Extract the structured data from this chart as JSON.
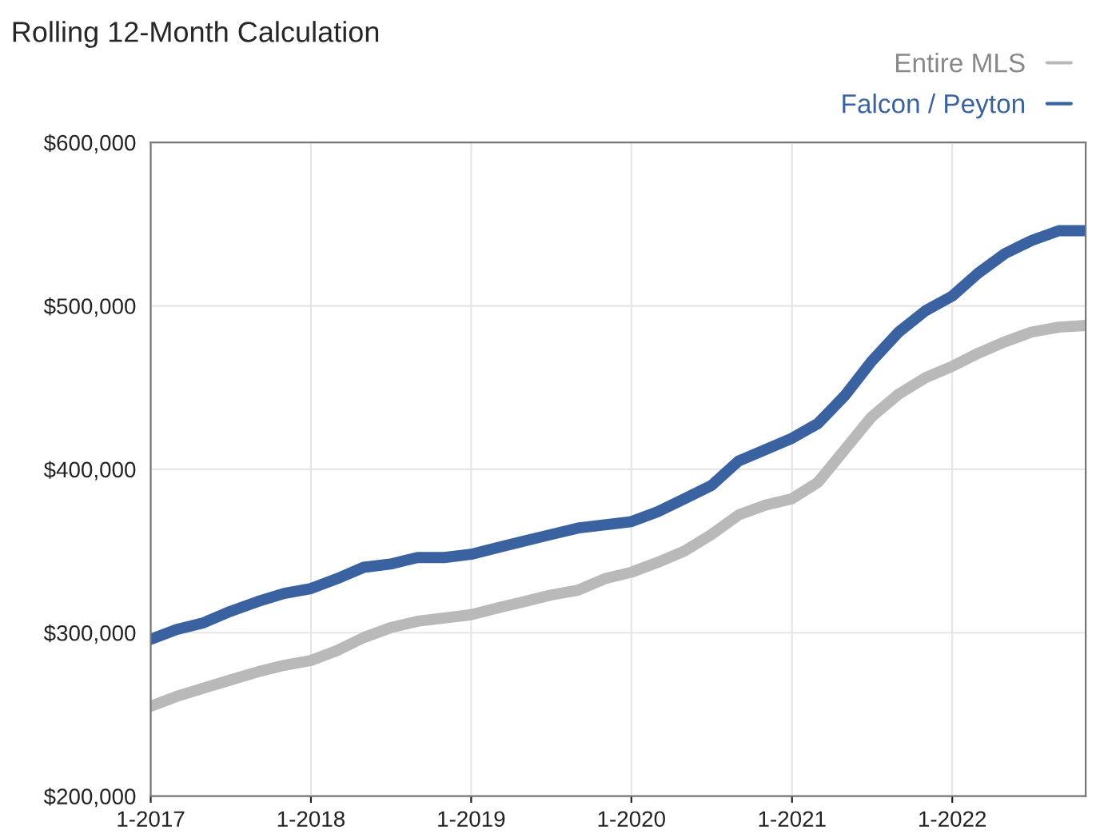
{
  "chart_data": {
    "type": "line",
    "title": "Rolling 12-Month Calculation",
    "x": [
      "2017-01",
      "2017-03",
      "2017-05",
      "2017-07",
      "2017-09",
      "2017-11",
      "2018-01",
      "2018-03",
      "2018-05",
      "2018-07",
      "2018-09",
      "2018-11",
      "2019-01",
      "2019-03",
      "2019-05",
      "2019-07",
      "2019-09",
      "2019-11",
      "2020-01",
      "2020-03",
      "2020-05",
      "2020-07",
      "2020-09",
      "2020-11",
      "2021-01",
      "2021-03",
      "2021-05",
      "2021-07",
      "2021-09",
      "2021-11",
      "2022-01",
      "2022-03",
      "2022-05",
      "2022-07",
      "2022-09",
      "2022-11"
    ],
    "series": [
      {
        "name": "Entire MLS",
        "color": "#b9b9b9",
        "values": [
          255000,
          261000,
          266000,
          271000,
          276000,
          280000,
          283000,
          289000,
          297000,
          303000,
          307000,
          309000,
          311000,
          315000,
          319000,
          323000,
          326000,
          333000,
          337000,
          343000,
          350000,
          360000,
          372000,
          378000,
          382000,
          392000,
          412000,
          432000,
          446000,
          456000,
          463000,
          471000,
          478000,
          484000,
          487000,
          488000
        ]
      },
      {
        "name": "Falcon / Peyton",
        "color": "#3a62a0",
        "values": [
          296000,
          302000,
          306000,
          313000,
          319000,
          324000,
          327000,
          333000,
          340000,
          342000,
          346000,
          346000,
          348000,
          352000,
          356000,
          360000,
          364000,
          366000,
          368000,
          374000,
          382000,
          390000,
          405000,
          412000,
          419000,
          428000,
          445000,
          466000,
          484000,
          497000,
          506000,
          520000,
          532000,
          540000,
          546000,
          546000
        ]
      }
    ],
    "xlim": [
      "2017-01",
      "2022-11"
    ],
    "xticks": [
      {
        "value": "2017-01",
        "label": "1-2017"
      },
      {
        "value": "2018-01",
        "label": "1-2018"
      },
      {
        "value": "2019-01",
        "label": "1-2019"
      },
      {
        "value": "2020-01",
        "label": "1-2020"
      },
      {
        "value": "2021-01",
        "label": "1-2021"
      },
      {
        "value": "2022-01",
        "label": "1-2022"
      }
    ],
    "ylim": [
      200000,
      600000
    ],
    "yticks": [
      {
        "value": 200000,
        "label": "$200,000"
      },
      {
        "value": 300000,
        "label": "$300,000"
      },
      {
        "value": 400000,
        "label": "$400,000"
      },
      {
        "value": 500000,
        "label": "$500,000"
      },
      {
        "value": 600000,
        "label": "$600,000"
      }
    ],
    "grid": true,
    "legend": "top right",
    "marker": "none",
    "line_style": "solid"
  }
}
